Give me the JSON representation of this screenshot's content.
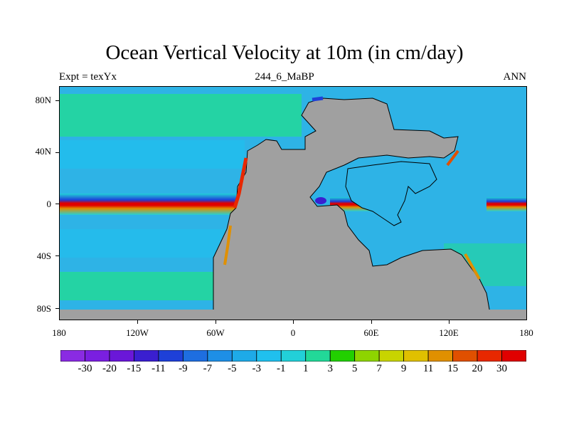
{
  "title": "Ocean Vertical Velocity at 10m (in cm/day)",
  "expt": "Expt = texYx",
  "subtitle": "244_6_MaBP",
  "period": "ANN",
  "lat_labels": [
    "80N",
    "40N",
    "0",
    "40S",
    "80S"
  ],
  "lon_labels": [
    "180",
    "120W",
    "60W",
    "0",
    "60E",
    "120E",
    "180"
  ],
  "colorbar": {
    "labels": [
      "-30",
      "-20",
      "-15",
      "-11",
      "-9",
      "-7",
      "-5",
      "-3",
      "-1",
      "1",
      "3",
      "5",
      "7",
      "9",
      "11",
      "15",
      "20",
      "30"
    ],
    "colors": [
      "#8a2be2",
      "#7a1fe0",
      "#6a17d8",
      "#3a1fd0",
      "#1e40d8",
      "#1e6ee0",
      "#1e8fe6",
      "#1eaae8",
      "#20c0ee",
      "#22d0d8",
      "#22d898",
      "#22d000",
      "#8ed400",
      "#c8d400",
      "#e0c000",
      "#e09000",
      "#e05000",
      "#e82800",
      "#e00000"
    ],
    "land_color": "#a0a0a0",
    "background_ocean": "#2eb3e6"
  }
}
